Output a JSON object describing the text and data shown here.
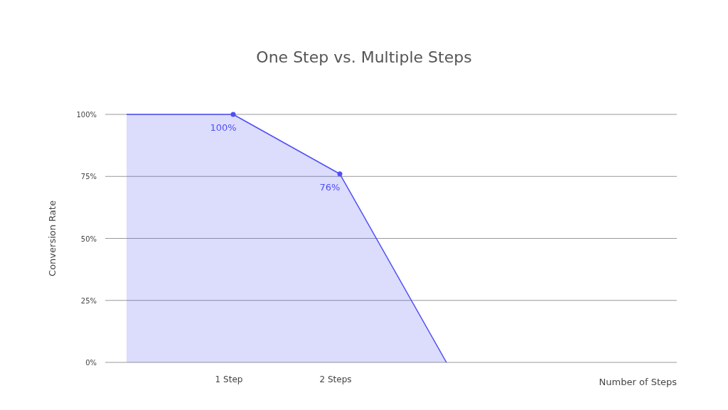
{
  "chart_data": {
    "type": "area",
    "title": "One Step vs. Multiple Steps",
    "annotations": [
      "Number of Steps"
    ],
    "ylabel": "Conversion Rate",
    "categories": [
      null,
      "1 Step",
      "2 Steps",
      null
    ],
    "series": [
      {
        "color": "#4f4ff5",
        "values": [
          100,
          100,
          76,
          0
        ],
        "value_labels": [
          null,
          "100%",
          "76%",
          null
        ]
      }
    ],
    "ylim": [
      0,
      100
    ],
    "yticks": [
      {
        "value": 0,
        "label": "0%"
      },
      {
        "value": 25,
        "label": "25%"
      },
      {
        "value": 50,
        "label": "50%"
      },
      {
        "value": 75,
        "label": "75%"
      },
      {
        "value": 100,
        "label": "100%"
      }
    ],
    "grid": "y",
    "marker": "circle"
  }
}
